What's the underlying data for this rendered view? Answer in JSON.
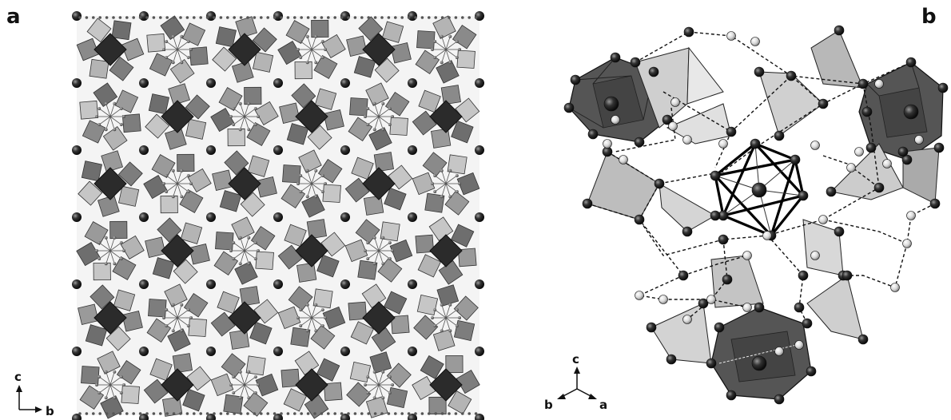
{
  "figure": {
    "panel_a": {
      "label": "a",
      "axes": {
        "vertical": "c",
        "horizontal": "b"
      }
    },
    "panel_b": {
      "label": "b",
      "axes": {
        "up": "c",
        "left": "b",
        "right": "a"
      }
    }
  }
}
